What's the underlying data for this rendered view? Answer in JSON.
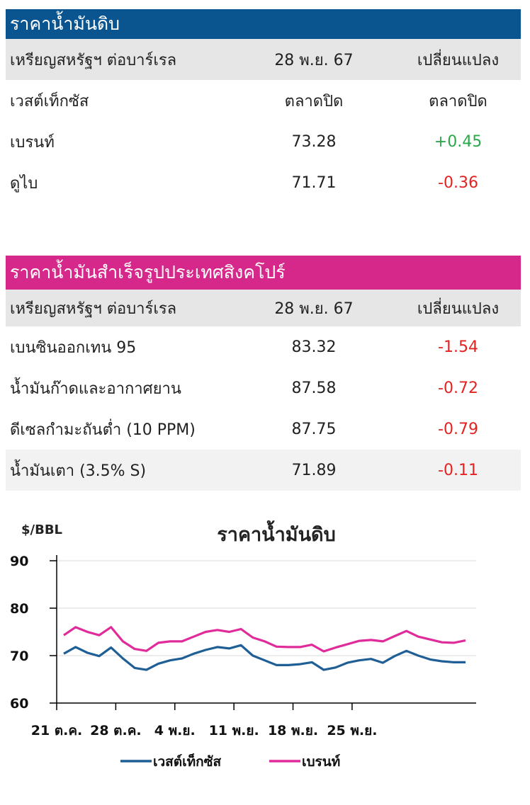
{
  "crude": {
    "title": "ราคาน้ำมันดิบ",
    "bar_color": "#0a5590",
    "header": [
      "เหรียญสหรัฐฯ ต่อบาร์เรล",
      "28 พ.ย. 67",
      "เปลี่ยนแปลง"
    ],
    "rows": [
      {
        "name": "เวสต์เท็กซัส",
        "value": "ตลาดปิด",
        "change": "ตลาดปิด"
      },
      {
        "name": "เบรนท์",
        "value": "73.28",
        "change": "+0.45"
      },
      {
        "name": "ดูไบ",
        "value": "71.71",
        "change": "-0.36"
      }
    ]
  },
  "singapore": {
    "title": "ราคาน้ำมันสำเร็จรูปประเทศสิงคโปร์",
    "bar_color": "#d6288a",
    "header": [
      "เหรียญสหรัฐฯ ต่อบาร์เรล",
      "28 พ.ย. 67",
      "เปลี่ยนแปลง"
    ],
    "rows": [
      {
        "name": "เบนซินออกเทน 95",
        "value": "83.32",
        "change": "-1.54"
      },
      {
        "name": "น้ำมันก๊าดและอากาศยาน",
        "value": "87.58",
        "change": "-0.72"
      },
      {
        "name": "ดีเซลกำมะถันต่ำ (10 PPM)",
        "value": "87.75",
        "change": "-0.79"
      },
      {
        "name": "น้ำมันเตา (3.5% S)",
        "value": "71.89",
        "change": "-0.11"
      }
    ]
  },
  "colors": {
    "positive": "#2aa84a",
    "negative": "#e32222",
    "header_bg": "#e6e6e6"
  },
  "chart_data": {
    "type": "line",
    "title": "ราคาน้ำมันดิบ",
    "ylabel": "$/BBL",
    "ylim": [
      60,
      90
    ],
    "yticks": [
      "60",
      "70",
      "80",
      "90"
    ],
    "x_ticks": [
      "21 ต.ค.",
      "28 ต.ค.",
      "4 พ.ย.",
      "11 พ.ย.",
      "18 พ.ย.",
      "25 พ.ย."
    ],
    "grid": true,
    "legend": "bottom",
    "series": [
      {
        "name": "เวสต์เท็กซัส",
        "color": "#1f5f96",
        "values": [
          70.4,
          71.8,
          70.6,
          69.9,
          71.7,
          69.4,
          67.4,
          67.0,
          68.3,
          69.0,
          69.4,
          70.4,
          71.2,
          71.8,
          71.5,
          72.2,
          70.0,
          69.0,
          68.0,
          68.0,
          68.2,
          68.6,
          67.0,
          67.5,
          68.5,
          69.0,
          69.3,
          68.5,
          69.9,
          71.0,
          70.0,
          69.2,
          68.8,
          68.6,
          68.6
        ]
      },
      {
        "name": "เบรนท์",
        "color": "#e02b9a",
        "values": [
          74.3,
          76.0,
          75.0,
          74.3,
          76.0,
          73.0,
          71.4,
          71.0,
          72.7,
          73.0,
          73.0,
          74.0,
          75.0,
          75.4,
          75.0,
          75.6,
          73.8,
          73.0,
          71.9,
          71.8,
          71.8,
          72.3,
          70.9,
          71.7,
          72.4,
          73.1,
          73.3,
          73.0,
          74.1,
          75.2,
          74.0,
          73.4,
          72.8,
          72.7,
          73.2
        ]
      }
    ]
  }
}
